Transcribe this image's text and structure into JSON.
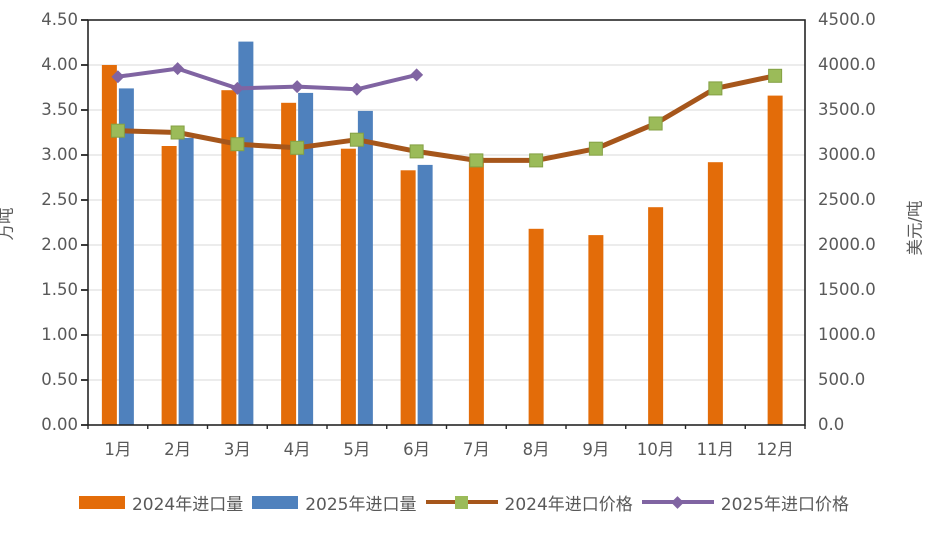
{
  "chart_data": {
    "type": "bar",
    "subtype": "combo-bar-line-dual-axis",
    "categories": [
      "1月",
      "2月",
      "3月",
      "4月",
      "5月",
      "6月",
      "7月",
      "8月",
      "9月",
      "10月",
      "11月",
      "12月"
    ],
    "series": [
      {
        "name": "2024年进口量",
        "type": "bar",
        "axis": "left",
        "color": "#E36C09",
        "values": [
          4.0,
          3.1,
          3.72,
          3.58,
          3.07,
          2.83,
          2.97,
          2.18,
          2.11,
          2.42,
          2.92,
          3.66
        ]
      },
      {
        "name": "2025年进口量",
        "type": "bar",
        "axis": "left",
        "color": "#4F81BD",
        "values": [
          3.74,
          3.19,
          4.26,
          3.69,
          3.49,
          2.89,
          null,
          null,
          null,
          null,
          null,
          null
        ]
      },
      {
        "name": "2024年进口价格",
        "type": "line",
        "axis": "right",
        "color": "#A6561B",
        "marker": "square",
        "marker_color": "#9BBB59",
        "values": [
          3270,
          3250,
          3120,
          3080,
          3170,
          3040,
          2940,
          2940,
          3070,
          3350,
          3740,
          3880
        ]
      },
      {
        "name": "2025年进口价格",
        "type": "line",
        "axis": "right",
        "color": "#8064A2",
        "marker": "diamond",
        "marker_color": "#8064A2",
        "values": [
          3870,
          3960,
          3740,
          3760,
          3730,
          3890,
          null,
          null,
          null,
          null,
          null,
          null
        ]
      }
    ],
    "y_left": {
      "title": "万吨",
      "min": 0,
      "max": 4.5,
      "step": 0.5,
      "tick_labels": [
        "4.50",
        "4.00",
        "3.50",
        "3.00",
        "2.50",
        "2.00",
        "1.50",
        "1.00",
        "0.50",
        "0.00"
      ]
    },
    "y_right": {
      "title": "美元/吨",
      "min": 0,
      "max": 4500,
      "step": 500,
      "tick_labels": [
        "4500.0",
        "4000.0",
        "3500.0",
        "3000.0",
        "2500.0",
        "2000.0",
        "1500.0",
        "1000.0",
        "500.0",
        "0.0"
      ]
    },
    "grid": true,
    "legend_position": "bottom",
    "colors": {
      "grid": "#D9D9D9",
      "axis": "#262626",
      "text": "#595959",
      "background": "#FFFFFF"
    }
  }
}
